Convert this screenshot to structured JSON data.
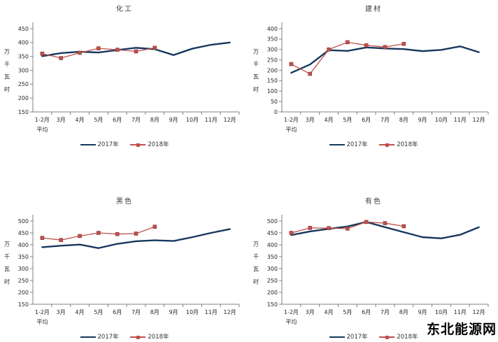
{
  "watermark": "东北能源网",
  "colors": {
    "series_2017": "#17375E",
    "series_2018": "#C0504D",
    "marker_edge": "#8A3734",
    "axis": "#808080",
    "tick_text": "#262626",
    "title_text": "#3D3D3D"
  },
  "chart_data": [
    {
      "type": "line",
      "title": "化工",
      "ylabel": "万千瓦时",
      "xlabel": "",
      "ylim": [
        150,
        450
      ],
      "ytick_step": 50,
      "grid": false,
      "legend_position": "bottom",
      "categories": [
        "1-2月",
        "3月",
        "4月",
        "5月",
        "6月",
        "7月",
        "8月",
        "9月",
        "10月",
        "11月",
        "12月"
      ],
      "first_category_line2": "平均",
      "series": [
        {
          "name": "2017年",
          "color": "#17375E",
          "marker": "none",
          "values": [
            351,
            362,
            367,
            364,
            373,
            381,
            376,
            355,
            378,
            392,
            400
          ]
        },
        {
          "name": "2018年",
          "color": "#C0504D",
          "marker": "square",
          "values": [
            360,
            344,
            363,
            379,
            374,
            368,
            381
          ]
        }
      ]
    },
    {
      "type": "line",
      "title": "建材",
      "ylabel": "万千瓦时",
      "xlabel": "",
      "ylim": [
        0,
        400
      ],
      "ytick_step": 50,
      "grid": false,
      "legend_position": "bottom",
      "categories": [
        "1-2月",
        "3月",
        "4月",
        "5月",
        "6月",
        "7月",
        "8月",
        "9月",
        "10月",
        "11月",
        "12月"
      ],
      "first_category_line2": "平均",
      "series": [
        {
          "name": "2017年",
          "color": "#17375E",
          "marker": "none",
          "values": [
            188,
            228,
            297,
            293,
            310,
            305,
            302,
            292,
            298,
            315,
            287
          ]
        },
        {
          "name": "2018年",
          "color": "#C0504D",
          "marker": "square",
          "values": [
            230,
            183,
            300,
            335,
            320,
            312,
            327
          ]
        }
      ]
    },
    {
      "type": "line",
      "title": "黑色",
      "ylabel": "万千瓦时",
      "xlabel": "",
      "ylim": [
        150,
        500
      ],
      "ytick_step": 50,
      "grid": false,
      "legend_position": "bottom",
      "categories": [
        "1-2月",
        "3月",
        "4月",
        "5月",
        "6月",
        "7月",
        "8月",
        "9月",
        "10月",
        "11月",
        "12月"
      ],
      "first_category_line2": "平均",
      "series": [
        {
          "name": "2017年",
          "color": "#17375E",
          "marker": "none",
          "values": [
            390,
            396,
            401,
            386,
            404,
            415,
            419,
            416,
            432,
            450,
            466
          ]
        },
        {
          "name": "2018年",
          "color": "#C0504D",
          "marker": "square",
          "values": [
            429,
            420,
            437,
            450,
            445,
            447,
            476
          ]
        }
      ]
    },
    {
      "type": "line",
      "title": "有色",
      "ylabel": "万千瓦时",
      "xlabel": "",
      "ylim": [
        150,
        500
      ],
      "ytick_step": 50,
      "grid": false,
      "legend_position": "bottom",
      "categories": [
        "1-2月",
        "3月",
        "4月",
        "5月",
        "6月",
        "7月",
        "8月",
        "9月",
        "10月",
        "11月",
        "12月"
      ],
      "first_category_line2": "平均",
      "series": [
        {
          "name": "2017年",
          "color": "#17375E",
          "marker": "none",
          "values": [
            441,
            456,
            467,
            477,
            496,
            474,
            453,
            432,
            427,
            442,
            474
          ]
        },
        {
          "name": "2018年",
          "color": "#C0504D",
          "marker": "square",
          "values": [
            450,
            471,
            470,
            468,
            496,
            491,
            478
          ]
        }
      ]
    }
  ]
}
